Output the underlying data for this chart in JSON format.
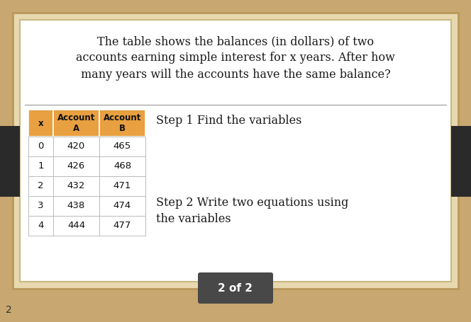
{
  "title_text": "The table shows the balances (in dollars) of two\naccounts earning simple interest for x years. After how\nmany years will the accounts have the same balance?",
  "step1_text": "Step 1 Find the variables",
  "step2_text": "Step 2 Write two equations using\nthe variables",
  "table_headers": [
    "x",
    "Account\nA",
    "Account\nB"
  ],
  "table_data": [
    [
      0,
      420,
      465
    ],
    [
      1,
      426,
      468
    ],
    [
      2,
      432,
      471
    ],
    [
      3,
      438,
      474
    ],
    [
      4,
      444,
      477
    ]
  ],
  "outer_bg": "#c8a870",
  "inner_border_bg": "#e8d8b0",
  "card_bg": "#f8f6f0",
  "white_card_bg": "#ffffff",
  "table_header_bg": "#e8a040",
  "footer_bg": "#484848",
  "footer_text": "2 of 2",
  "footer_text_color": "#ffffff",
  "page_num_text": "2",
  "title_fontsize": 11.5,
  "step_fontsize": 11.5,
  "table_header_fontsize": 8.5,
  "table_data_fontsize": 9.5,
  "footer_fontsize": 11
}
